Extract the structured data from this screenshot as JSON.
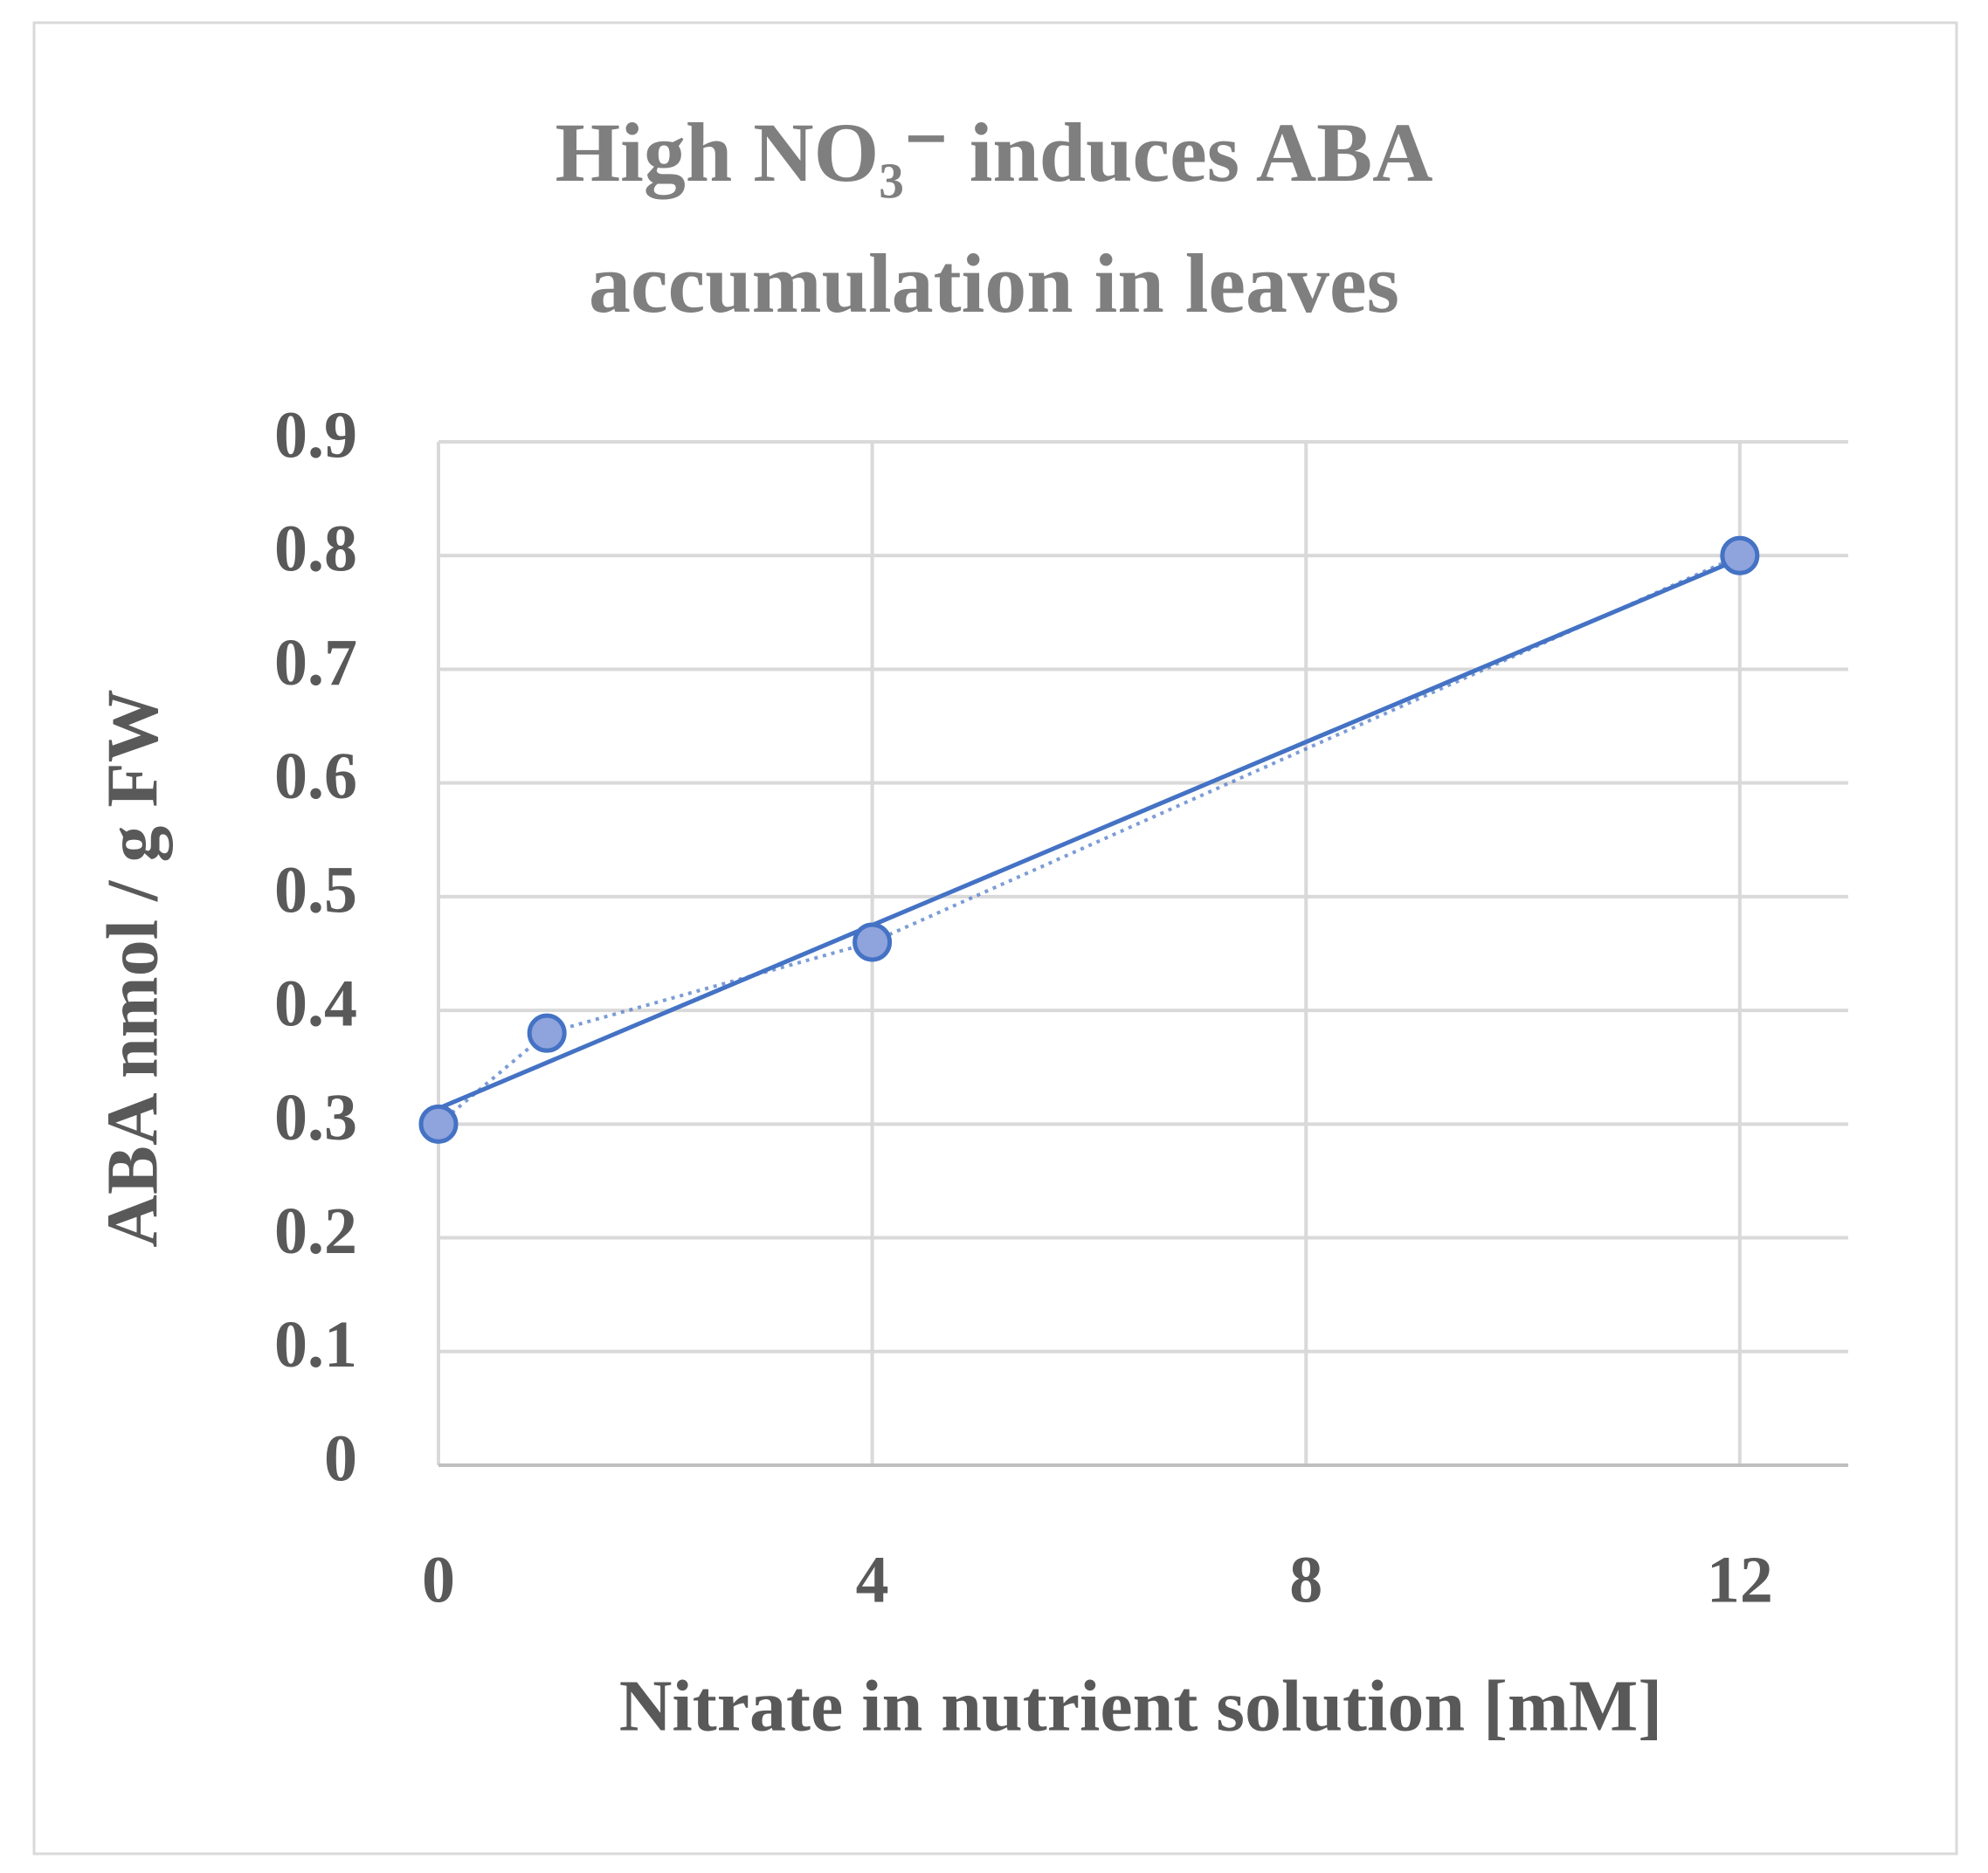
{
  "chart_data": {
    "type": "scatter",
    "title": "High NO₃⁻ induces ABA accumulation in leaves",
    "x_label": "Nitrate in nutrient solution [mM]",
    "y_label": "ABA nmol / g FW",
    "series": [
      {
        "name": "ABA",
        "color": "#4472c4",
        "x": [
          0,
          1,
          4,
          12
        ],
        "values": [
          0.3,
          0.38,
          0.46,
          0.8
        ]
      }
    ],
    "trendline": "linear",
    "xlim": [
      0,
      13
    ],
    "xticks": [
      0,
      4,
      8,
      12
    ],
    "ylim": [
      0,
      0.9
    ],
    "yticks": [
      0,
      0.1,
      0.2,
      0.3,
      0.4,
      0.5,
      0.6,
      0.7,
      0.8,
      0.9
    ],
    "grid": true
  }
}
